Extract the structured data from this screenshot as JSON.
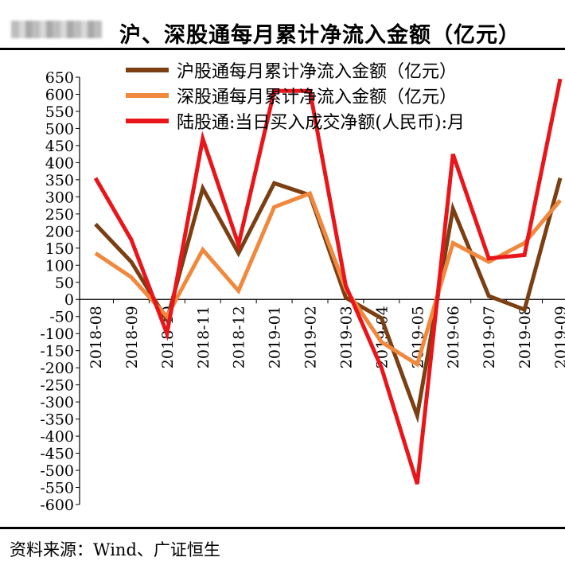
{
  "header": {
    "title": "沪、深股通每月累计净流入金额（亿元）"
  },
  "footer": {
    "source": "资料来源：Wind、广证恒生"
  },
  "chart_data": {
    "type": "line",
    "x": [
      "2018-08",
      "2018-09",
      "2018-10",
      "2018-11",
      "2018-12",
      "2019-01",
      "2019-02",
      "2019-03",
      "2019-04",
      "2019-05",
      "2019-06",
      "2019-07",
      "2019-08",
      "2019-09"
    ],
    "ylim": [
      -600,
      650
    ],
    "ytick_step": 50,
    "grid": false,
    "legend_position": "top",
    "series": [
      {
        "name": "沪股通每月累计净流入金额（亿元）",
        "color": "#7b3f13",
        "values": [
          220,
          110,
          -60,
          325,
          135,
          340,
          305,
          5,
          -55,
          -340,
          265,
          10,
          -30,
          355
        ]
      },
      {
        "name": "深股通每月累计净流入金额（亿元）",
        "color": "#f0883e",
        "values": [
          135,
          65,
          -50,
          145,
          25,
          270,
          310,
          30,
          -125,
          -190,
          165,
          110,
          165,
          290
        ]
      },
      {
        "name": "陆股通:当日买入成交净额(人民币):月",
        "color": "#e8161b",
        "values": [
          355,
          175,
          -100,
          470,
          160,
          610,
          610,
          40,
          -200,
          -540,
          425,
          120,
          130,
          645
        ]
      }
    ]
  }
}
